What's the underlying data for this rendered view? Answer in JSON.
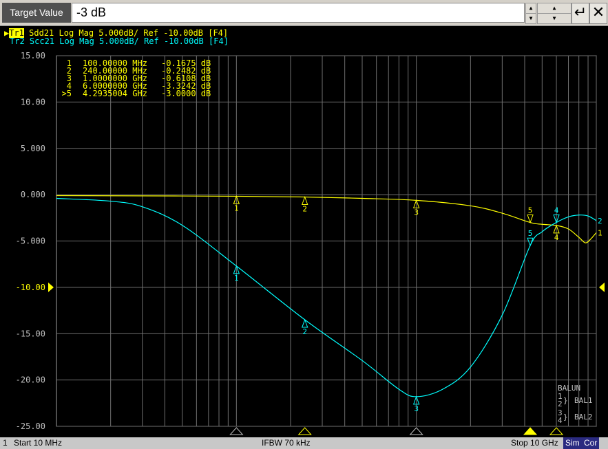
{
  "entry": {
    "label": "Target Value",
    "value": "-3 dB",
    "enter_icon": "enter-icon",
    "cancel_icon": "close-icon"
  },
  "traces": [
    {
      "id": "Tr1",
      "text": " Sdd21 Log Mag 5.000dB/ Ref -10.00dB [F4]",
      "color": "#ffff00",
      "active": true
    },
    {
      "id": "Tr2",
      "text": " Scc21 Log Mag 5.000dB/ Ref -10.00dB [F4]",
      "color": "#00ffff",
      "active": false
    }
  ],
  "marker_table": [
    {
      "n": "1",
      "freq": "100.00000 MHz",
      "val": "-0.1675 dB"
    },
    {
      "n": "2",
      "freq": "240.00000 MHz",
      "val": "-0.2482 dB"
    },
    {
      "n": "3",
      "freq": "1.0000000 GHz",
      "val": "-0.6108 dB"
    },
    {
      "n": "4",
      "freq": "6.0000000 GHz",
      "val": "-3.3242 dB"
    },
    {
      "n": ">5",
      "freq": "4.2935004 GHz",
      "val": "-3.0000 dB"
    }
  ],
  "balun": {
    "title": "BALUN",
    "p1": "1",
    "p2": "2",
    "p3": "3",
    "p4": "4",
    "bal1": "BAL1",
    "bal2": "BAL2"
  },
  "status": {
    "channel": "1",
    "start": "Start 10 MHz",
    "ifbw": "IFBW 70 kHz",
    "stop": "Stop 10 GHz",
    "sim": "Sim",
    "cor": "Cor"
  },
  "chart_data": {
    "type": "line",
    "x_scale": "log",
    "xlim_hz": [
      10000000,
      10000000000
    ],
    "ylim": [
      -25,
      15
    ],
    "y_div": 5,
    "ref": -10,
    "grid": true,
    "yticks": [
      "15.00",
      "10.00",
      "5.000",
      "0.000",
      "-5.000",
      "-10.00",
      "-15.00",
      "-20.00",
      "-25.00"
    ],
    "series": [
      {
        "name": "Tr1 Sdd21",
        "color": "#ffff00",
        "end_label": "1",
        "x": [
          10000000.0,
          30000000.0,
          100000000.0,
          240000000.0,
          500000000.0,
          1000000000.0,
          2000000000.0,
          3000000000.0,
          4290000000.0,
          5000000000.0,
          6000000000.0,
          7000000000.0,
          8000000000.0,
          8700000000.0,
          9300000000.0,
          10000000000.0
        ],
        "y": [
          -0.1,
          -0.13,
          -0.17,
          -0.25,
          -0.4,
          -0.61,
          -1.2,
          -2.0,
          -3.0,
          -3.2,
          -3.32,
          -3.7,
          -4.6,
          -5.2,
          -4.8,
          -4.1
        ]
      },
      {
        "name": "Tr2 Scc21",
        "color": "#00ffff",
        "end_label": "2",
        "x": [
          10000000.0,
          20000000.0,
          30000000.0,
          50000000.0,
          100000000.0,
          240000000.0,
          500000000.0,
          800000000.0,
          1000000000.0,
          1400000000.0,
          2000000000.0,
          3000000000.0,
          4290000000.0,
          5000000000.0,
          6000000000.0,
          7000000000.0,
          8000000000.0,
          9000000000.0,
          10000000000.0
        ],
        "y": [
          -0.4,
          -0.7,
          -1.3,
          -3.3,
          -7.7,
          -13.5,
          -17.9,
          -21.0,
          -21.8,
          -21.0,
          -18.6,
          -13.0,
          -5.5,
          -4.0,
          -3.0,
          -2.4,
          -2.2,
          -2.3,
          -2.8
        ]
      }
    ],
    "markers": [
      {
        "n": "1",
        "freq": 100000000.0,
        "y1": -0.17,
        "y2": -7.7
      },
      {
        "n": "2",
        "freq": 240000000.0,
        "y1": -0.25,
        "y2": -13.5
      },
      {
        "n": "3",
        "freq": 1000000000.0,
        "y1": -0.61,
        "y2": -21.8
      },
      {
        "n": "4",
        "freq": 6000000000.0,
        "y1": -3.32,
        "y2": -3.0
      },
      {
        "n": "5",
        "freq": 4293500000.0,
        "y1": -3.0,
        "y2": -5.5,
        "active": true
      }
    ]
  }
}
